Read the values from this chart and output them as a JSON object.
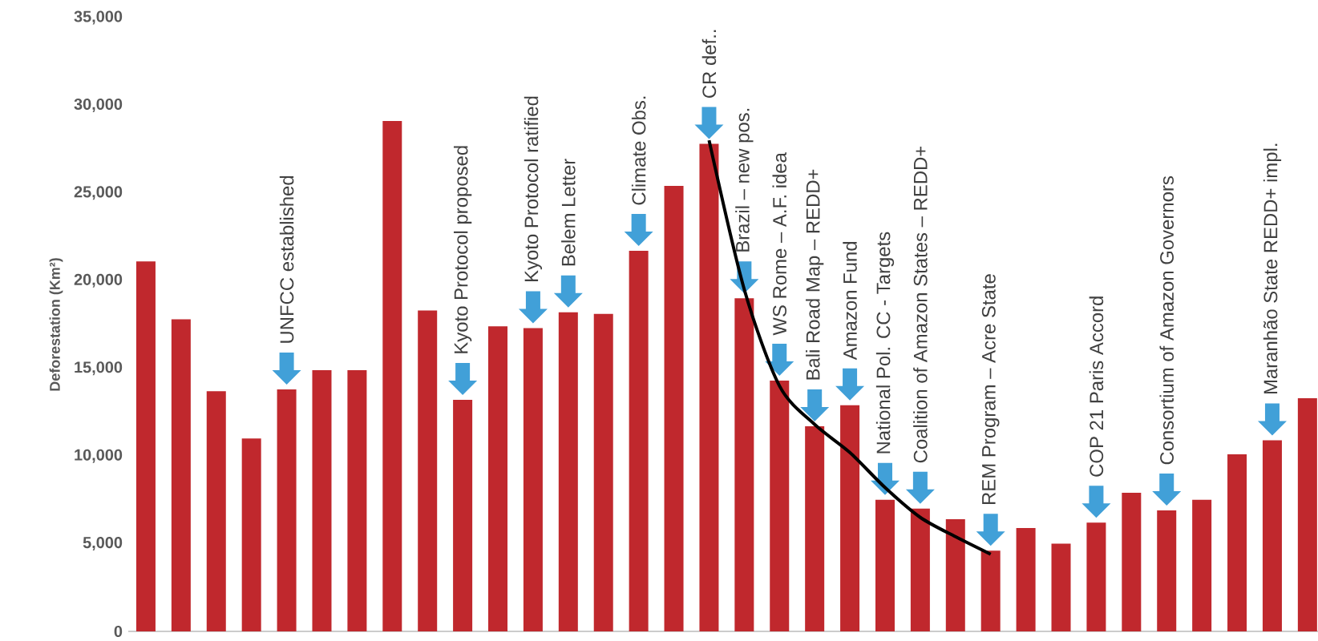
{
  "chart_data": {
    "type": "bar",
    "ylabel": "Deforestation (Km²)",
    "categories": [
      null,
      null,
      null,
      null,
      null,
      null,
      null,
      null,
      null,
      null,
      null,
      null,
      null,
      null,
      null,
      null,
      null,
      null,
      null,
      null,
      null,
      null,
      null,
      null,
      null,
      null,
      null,
      null,
      null,
      null,
      null,
      null,
      null,
      null
    ],
    "series": [
      {
        "color": "#c0282d",
        "values": [
          21100,
          17800,
          13700,
          11000,
          13800,
          14900,
          14900,
          29100,
          18300,
          13200,
          17400,
          17300,
          18200,
          18100,
          21700,
          25400,
          27800,
          19000,
          14300,
          11700,
          12900,
          7500,
          7000,
          6400,
          4600,
          5900,
          5000,
          6200,
          7900,
          6900,
          7500,
          10100,
          10900,
          13300
        ]
      },
      {
        "type": "line",
        "color": "#000000",
        "values": [
          null,
          null,
          null,
          null,
          null,
          null,
          null,
          null,
          null,
          null,
          null,
          null,
          null,
          null,
          null,
          null,
          28000,
          19500,
          14000,
          11800,
          10200,
          8200,
          6500,
          5400,
          4400,
          null,
          null,
          null,
          null,
          null,
          null,
          null,
          null,
          null
        ]
      }
    ],
    "ylim": [
      0,
      35000
    ],
    "yticks": [
      {
        "value": 0,
        "label": "0"
      },
      {
        "value": 5000,
        "label": "5,000"
      },
      {
        "value": 10000,
        "label": "10,000"
      },
      {
        "value": 15000,
        "label": "15,000"
      },
      {
        "value": 20000,
        "label": "20,000"
      },
      {
        "value": 25000,
        "label": "25,000"
      },
      {
        "value": 30000,
        "label": "30,000"
      },
      {
        "value": 35000,
        "label": "35,000"
      }
    ],
    "tick_labels": "y",
    "annotations": [
      {
        "text": "UNFCC established",
        "y": 13800
      },
      {
        "text": "Kyoto Protocol proposed",
        "y": 13200
      },
      {
        "text": "Kyoto Protocol ratified",
        "y": 17300
      },
      {
        "text": "Belem Letter",
        "y": 18200
      },
      {
        "text": "Climate Obs.",
        "y": 21700
      },
      {
        "text": "CR def..",
        "y": 27800
      },
      {
        "text": "Brazil – new pos.",
        "y": 19000
      },
      {
        "text": "WS Rome – A.F. idea",
        "y": 14300
      },
      {
        "text": "Bali Road Map – REDD+",
        "y": 11700
      },
      {
        "text": "Amazon Fund",
        "y": 12900
      },
      {
        "text": "National Pol. CC - Targets",
        "y": 7500
      },
      {
        "text": "Coalition of Amazon States – REDD+",
        "y": 7000
      },
      {
        "text": "REM Program – Acre State",
        "y": 4600
      },
      {
        "text": "COP 21 Paris Accord",
        "y": 6200
      },
      {
        "text": "Consortium of Amazon Governors",
        "y": 6900
      },
      {
        "text": "Maranhão State  REDD+ impl.",
        "y": 10900
      }
    ]
  }
}
